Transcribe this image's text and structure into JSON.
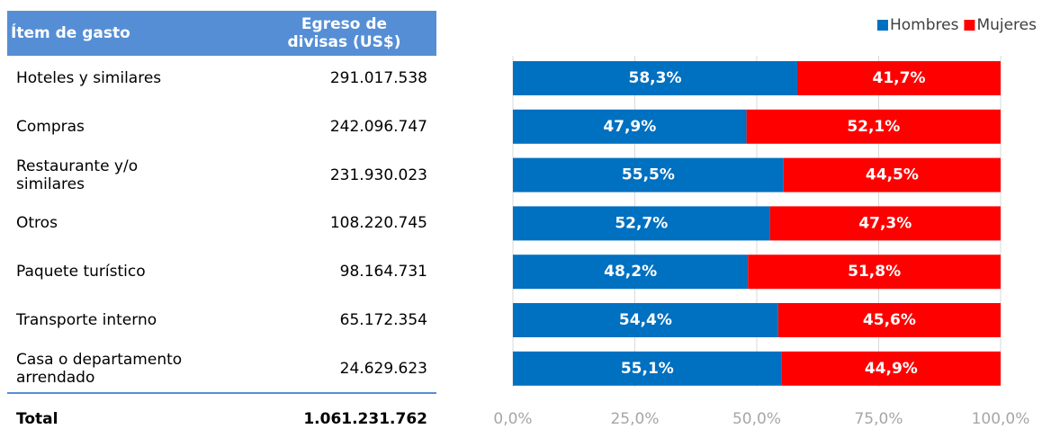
{
  "table": {
    "header": [
      "Ítem de gasto",
      "Egreso de\ndivisas (US$)"
    ],
    "rows": [
      [
        "Hoteles y similares",
        "291.017.538"
      ],
      [
        "Compras",
        "242.096.747"
      ],
      [
        "Restaurante y/o\nsimilares",
        "231.930.023"
      ],
      [
        "Otros",
        "108.220.745"
      ],
      [
        "Paquete turístico",
        "98.164.731"
      ],
      [
        "Transporte interno",
        "65.172.354"
      ],
      [
        "Casa o departamento\narrendado",
        "24.629.623"
      ]
    ],
    "total": [
      "Total",
      "1.061.231.762"
    ]
  },
  "chart_data": {
    "type": "stacked_bar_horizontal",
    "series": [
      {
        "name": "Hombres",
        "color": "#0070c0",
        "values": [
          58.3,
          47.9,
          55.5,
          52.7,
          48.2,
          54.4,
          55.1
        ],
        "value_labels": [
          "58,3%",
          "47,9%",
          "55,5%",
          "52,7%",
          "48,2%",
          "54,4%",
          "55,1%"
        ]
      },
      {
        "name": "Mujeres",
        "color": "#ff0000",
        "values": [
          41.7,
          52.1,
          44.5,
          47.3,
          51.8,
          45.6,
          44.9
        ],
        "value_labels": [
          "41,7%",
          "52,1%",
          "44,5%",
          "47,3%",
          "51,8%",
          "45,6%",
          "44,9%"
        ]
      }
    ],
    "xlim": [
      0,
      100
    ],
    "xticks": [
      {
        "value": 0,
        "label": "0,0%"
      },
      {
        "value": 25,
        "label": "25,0%"
      },
      {
        "value": 50,
        "label": "50,0%"
      },
      {
        "value": 75,
        "label": "75,0%"
      },
      {
        "value": 100,
        "label": "100,0%"
      }
    ],
    "grid": true,
    "legend": "top-right"
  }
}
